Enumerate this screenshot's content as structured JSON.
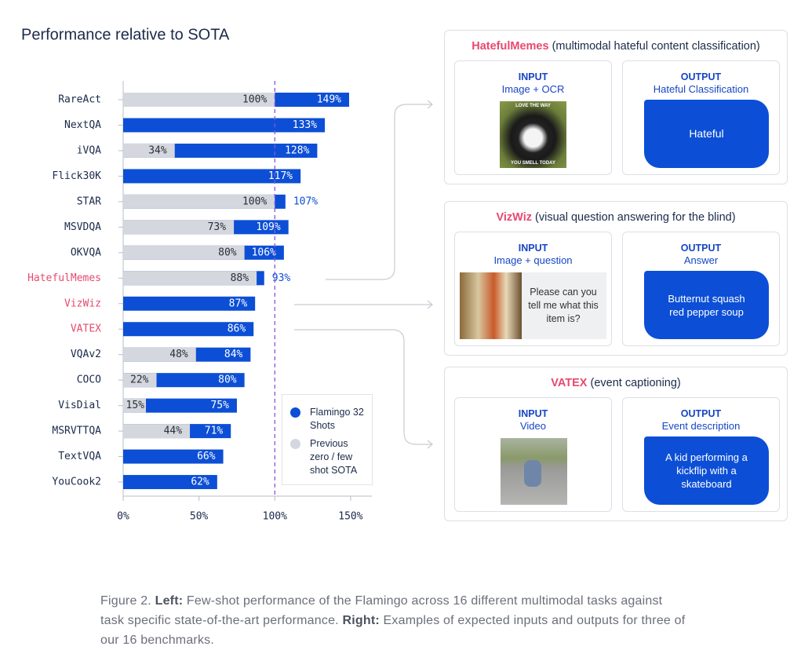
{
  "chart_data": {
    "type": "bar",
    "orientation": "horizontal",
    "title": "Performance relative to SOTA",
    "categories": [
      "RareAct",
      "NextQA",
      "iVQA",
      "Flick30K",
      "STAR",
      "MSVDQA",
      "OKVQA",
      "HatefulMemes",
      "VizWiz",
      "VATEX",
      "VQAv2",
      "COCO",
      "VisDial",
      "MSRVTTQA",
      "TextVQA",
      "YouCook2"
    ],
    "highlighted_categories": [
      7,
      8,
      9
    ],
    "highlight_color": "#e8496f",
    "series": [
      {
        "name": "Flamingo 32 Shots",
        "color": "#0c4fd6",
        "values": [
          149,
          133,
          128,
          117,
          107,
          109,
          106,
          93,
          87,
          86,
          84,
          80,
          75,
          71,
          66,
          62
        ],
        "value_labels": [
          "149%",
          "133%",
          "128%",
          "117%",
          "107%",
          "109%",
          "106%",
          "93%",
          "87%",
          "86%",
          "84%",
          "80%",
          "75%",
          "71%",
          "66%",
          "62%"
        ]
      },
      {
        "name": "Previous zero / few shot SOTA",
        "color": "#d4d7dd",
        "values": [
          100,
          null,
          34,
          null,
          100,
          73,
          80,
          88,
          null,
          null,
          48,
          22,
          15,
          44,
          null,
          null
        ],
        "value_labels": [
          "100%",
          null,
          "34%",
          null,
          "100%",
          "73%",
          "80%",
          "88%",
          null,
          null,
          "48%",
          "22%",
          "15%",
          "44%",
          null,
          null
        ]
      }
    ],
    "xlim": [
      0,
      164
    ],
    "xticks": [
      {
        "value": 0,
        "label": "0%"
      },
      {
        "value": 50,
        "label": "50%"
      },
      {
        "value": 100,
        "label": "100%"
      },
      {
        "value": 150,
        "label": "150%"
      }
    ],
    "reference_line": 100,
    "reference_color": "#8a55d9",
    "legend": "lower-right"
  },
  "panels": [
    {
      "name": "HatefulMemes",
      "description": "(multimodal hateful content classification)",
      "input": {
        "title": "INPUT",
        "subtitle": "Image + OCR",
        "image_text": [
          "LOVE THE WAY",
          "YOU SMELL TODAY"
        ]
      },
      "output": {
        "title": "OUTPUT",
        "subtitle": "Hateful Classification",
        "text": "Hateful"
      }
    },
    {
      "name": "VizWiz",
      "description": "(visual question answering for the blind)",
      "input": {
        "title": "INPUT",
        "subtitle": "Image + question",
        "text": "Please can you tell me what this item is?"
      },
      "output": {
        "title": "OUTPUT",
        "subtitle": "Answer",
        "text": "Butternut squash red pepper soup"
      }
    },
    {
      "name": "VATEX",
      "description": "(event captioning)",
      "input": {
        "title": "INPUT",
        "subtitle": "Video"
      },
      "output": {
        "title": "OUTPUT",
        "subtitle": "Event description",
        "text": "A kid performing a kickflip with a skateboard"
      }
    }
  ],
  "caption": {
    "figure": "Figure 2.",
    "left_label": "Left:",
    "left_text": "Few-shot performance of the Flamingo across 16 different multimodal tasks against task specific state-of-the-art performance.",
    "right_label": "Right:",
    "right_text": "Examples of expected inputs and outputs for three of our 16 benchmarks."
  }
}
